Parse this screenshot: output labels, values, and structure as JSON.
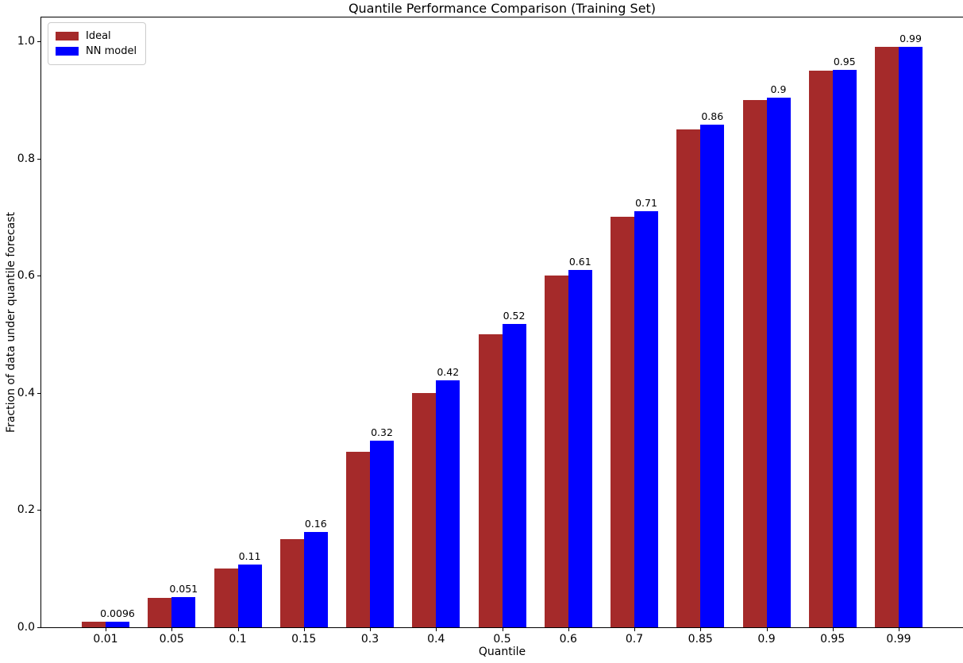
{
  "title": "Quantile Performance Comparison (Training Set)",
  "colors": {
    "ideal": "#a52a2a",
    "nn_model": "#0000ff",
    "axis": "#000000",
    "background": "#ffffff",
    "legend_border": "#cccccc"
  },
  "legend": {
    "items": [
      {
        "label": "Ideal",
        "color": "#a52a2a"
      },
      {
        "label": "NN model",
        "color": "#0000ff"
      }
    ]
  },
  "chart_data": {
    "type": "bar",
    "title": "Quantile Performance Comparison (Training Set)",
    "xlabel": "Quantile",
    "ylabel": "Fraction of data under quantile forecast",
    "categories": [
      "0.01",
      "0.05",
      "0.1",
      "0.15",
      "0.3",
      "0.4",
      "0.5",
      "0.6",
      "0.7",
      "0.85",
      "0.9",
      "0.95",
      "0.99"
    ],
    "series": [
      {
        "name": "Ideal",
        "color": "#a52a2a",
        "values": [
          0.01,
          0.05,
          0.1,
          0.15,
          0.3,
          0.4,
          0.5,
          0.6,
          0.7,
          0.85,
          0.9,
          0.95,
          0.99
        ]
      },
      {
        "name": "NN model",
        "color": "#0000ff",
        "values": [
          0.0096,
          0.051,
          0.107,
          0.163,
          0.318,
          0.421,
          0.517,
          0.61,
          0.71,
          0.858,
          0.904,
          0.951,
          0.99
        ]
      }
    ],
    "bar_labels": [
      "0.0096",
      "0.051",
      "0.11",
      "0.16",
      "0.32",
      "0.42",
      "0.52",
      "0.61",
      "0.71",
      "0.86",
      "0.9",
      "0.95",
      "0.99"
    ],
    "yticks": [
      "0.0",
      "0.2",
      "0.4",
      "0.6",
      "0.8",
      "1.0"
    ],
    "ylim": [
      0,
      1.04
    ],
    "grid": false,
    "legend_position": "upper left"
  }
}
